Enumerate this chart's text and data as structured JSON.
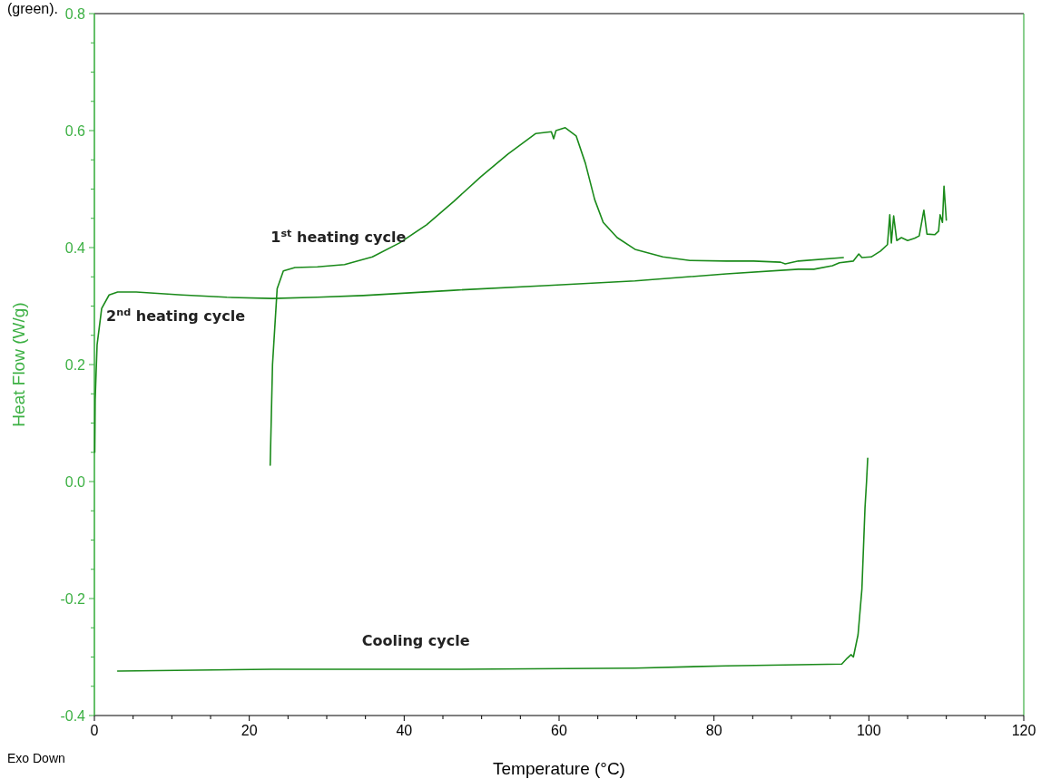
{
  "chart_data": {
    "type": "line",
    "xlabel": "Temperature (°C)",
    "ylabel": "Heat Flow (W/g)",
    "xlim": [
      0,
      120
    ],
    "ylim": [
      -0.4,
      0.8
    ],
    "xticks": [
      0,
      {
        "value": 5,
        "label": null
      },
      {
        "value": 10,
        "label": null
      },
      {
        "value": 15,
        "label": null
      },
      20,
      {
        "value": 25,
        "label": null
      },
      {
        "value": 30,
        "label": null
      },
      {
        "value": 35,
        "label": null
      },
      40,
      {
        "value": 45,
        "label": null
      },
      {
        "value": 50,
        "label": null
      },
      {
        "value": 55,
        "label": null
      },
      60,
      {
        "value": 65,
        "label": null
      },
      {
        "value": 70,
        "label": null
      },
      {
        "value": 75,
        "label": null
      },
      80,
      {
        "value": 85,
        "label": null
      },
      {
        "value": 90,
        "label": null
      },
      {
        "value": 95,
        "label": null
      },
      100,
      {
        "value": 105,
        "label": null
      },
      {
        "value": 110,
        "label": null
      },
      {
        "value": 115,
        "label": null
      },
      120
    ],
    "yticks": [
      {
        "value": -0.4,
        "label": "-0.4"
      },
      {
        "value": -0.35,
        "label": null
      },
      {
        "value": -0.3,
        "label": null
      },
      {
        "value": -0.25,
        "label": null
      },
      {
        "value": -0.2,
        "label": "-0.2"
      },
      {
        "value": -0.15,
        "label": null
      },
      {
        "value": -0.1,
        "label": null
      },
      {
        "value": -0.05,
        "label": null
      },
      {
        "value": 0,
        "label": "0.0"
      },
      {
        "value": 0.05,
        "label": null
      },
      {
        "value": 0.1,
        "label": null
      },
      {
        "value": 0.15,
        "label": null
      },
      {
        "value": 0.2,
        "label": "0.2"
      },
      {
        "value": 0.25,
        "label": null
      },
      {
        "value": 0.3,
        "label": null
      },
      {
        "value": 0.35,
        "label": null
      },
      {
        "value": 0.4,
        "label": "0.4"
      },
      {
        "value": 0.45,
        "label": null
      },
      {
        "value": 0.5,
        "label": null
      },
      {
        "value": 0.55,
        "label": null
      },
      {
        "value": 0.6,
        "label": "0.6"
      },
      {
        "value": 0.65,
        "label": null
      },
      {
        "value": 0.7,
        "label": null
      },
      {
        "value": 0.75,
        "label": null
      },
      {
        "value": 0.8,
        "label": "0.8"
      }
    ],
    "grid": false,
    "marker": "none",
    "line_style": "solid",
    "series": [
      {
        "color": "#1a8a1a",
        "x": [
          22.7,
          23.0,
          23.6,
          24.4,
          25.9,
          28.8,
          32.3,
          35.9,
          39.4,
          42.9,
          46.4,
          49.9,
          53.4,
          57.0,
          59.0,
          59.3,
          59.6,
          60.8,
          62.2,
          63.4,
          64.6,
          65.7,
          67.5,
          69.8,
          73.4,
          76.9,
          81.6,
          85.1,
          88.6,
          89.2,
          90.9,
          96.7
        ],
        "values": [
          0.028,
          0.2,
          0.33,
          0.36,
          0.366,
          0.367,
          0.371,
          0.384,
          0.408,
          0.439,
          0.479,
          0.521,
          0.56,
          0.595,
          0.598,
          0.586,
          0.6,
          0.605,
          0.591,
          0.544,
          0.482,
          0.443,
          0.417,
          0.397,
          0.384,
          0.378,
          0.377,
          0.377,
          0.375,
          0.372,
          0.377,
          0.383
        ]
      },
      {
        "color": "#1a8a1a",
        "x": [
          0.05,
          0.1,
          0.35,
          0.94,
          1.9,
          3.0,
          5.4,
          11.3,
          17.1,
          23.0,
          28.8,
          34.7,
          46.4,
          58.1,
          69.8,
          81.6,
          90.9,
          92.9,
          95.3,
          96.2,
          98.0,
          98.7,
          99.1,
          100.3,
          101.5,
          102.4,
          102.7,
          102.9,
          103.2,
          103.6,
          104.2,
          105.0,
          105.9,
          106.5,
          107.1,
          107.5,
          108.5,
          109.0,
          109.2,
          109.5,
          109.7,
          110.0
        ],
        "values": [
          0.05,
          0.14,
          0.234,
          0.296,
          0.319,
          0.324,
          0.324,
          0.319,
          0.315,
          0.313,
          0.315,
          0.318,
          0.327,
          0.335,
          0.343,
          0.355,
          0.363,
          0.363,
          0.369,
          0.374,
          0.377,
          0.389,
          0.383,
          0.384,
          0.394,
          0.405,
          0.456,
          0.408,
          0.454,
          0.412,
          0.417,
          0.412,
          0.416,
          0.42,
          0.464,
          0.423,
          0.422,
          0.428,
          0.456,
          0.443,
          0.505,
          0.447
        ]
      },
      {
        "color": "#1a8a1a",
        "x": [
          3.0,
          23.0,
          46.4,
          69.8,
          81.6,
          96.5,
          97.2,
          97.7,
          98.0,
          98.6,
          99.1,
          99.5,
          99.7,
          99.85
        ],
        "values": [
          -0.324,
          -0.321,
          -0.321,
          -0.319,
          -0.315,
          -0.312,
          -0.302,
          -0.296,
          -0.3,
          -0.262,
          -0.184,
          -0.045,
          0.0,
          0.04
        ]
      }
    ],
    "annotations": [
      "1$^{st}$ heating cycle",
      "2$^{nd}$ heating cycle",
      "Cooling cycle",
      "(green).",
      "Exo Down"
    ]
  }
}
